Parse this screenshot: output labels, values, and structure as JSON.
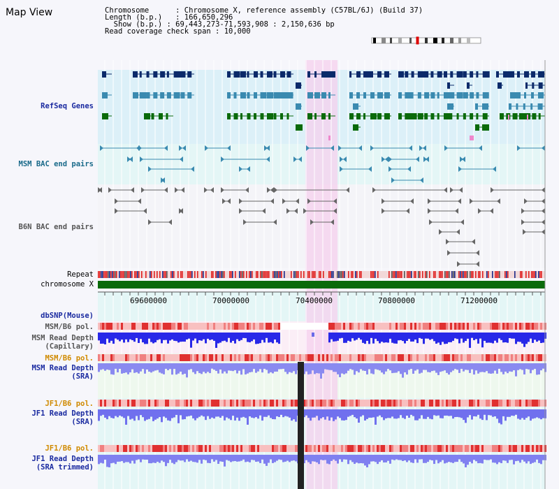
{
  "title": "Map View",
  "info": {
    "chromosome_label": "Chromosome",
    "chromosome_value": "Chromosome X, reference assembly (C57BL/6J) (Build 37)",
    "length_label": "Length (b.p.)",
    "length_value": "166,650,296",
    "show_label": "Show (b.p.)",
    "show_value": "69,443,273-71,593,908 : 2,150,636 bp",
    "coverage_label": "Read coverage check span",
    "coverage_value": "10,000"
  },
  "tracks": {
    "refseq": "RefSeq Genes",
    "msm_bac": "MSM BAC end pairs",
    "b6n_bac": "B6N BAC end pairs",
    "repeat": "Repeat",
    "chromosome": "chromosome X",
    "dbsnp": "dbSNP(Mouse)",
    "msm_b6_pol_1": "MSM/B6 pol.",
    "msm_depth_cap_1": "MSM Read Depth",
    "msm_depth_cap_2": "(Capillary)",
    "msm_b6_pol_2": "MSM/B6 pol.",
    "msm_depth_sra_1": "MSM Read Depth",
    "msm_depth_sra_2": "(SRA)",
    "jf1_b6_pol_1": "JF1/B6 pol.",
    "jf1_depth_sra_1": "JF1 Read Depth",
    "jf1_depth_sra_2": "(SRA)",
    "jf1_b6_pol_2": "JF1/B6 pol.",
    "jf1_depth_trim_1": "JF1 Read Depth",
    "jf1_depth_trim_2": "(SRA trimmed)"
  },
  "axis": {
    "ticks": [
      "69600000",
      "70000000",
      "70400000",
      "70800000",
      "71200000"
    ]
  },
  "colors": {
    "refseq_dark": "#0b2a6a",
    "refseq_mid": "#3a8ab0",
    "refseq_green": "#0a6a0a",
    "highlight": "#f6d4f0",
    "depth_blue": "#2020e0",
    "pol_red": "#e03030",
    "chrom_green": "#0a6a0a",
    "label_navy": "#1a2aa0",
    "label_orange": "#d08a00"
  }
}
